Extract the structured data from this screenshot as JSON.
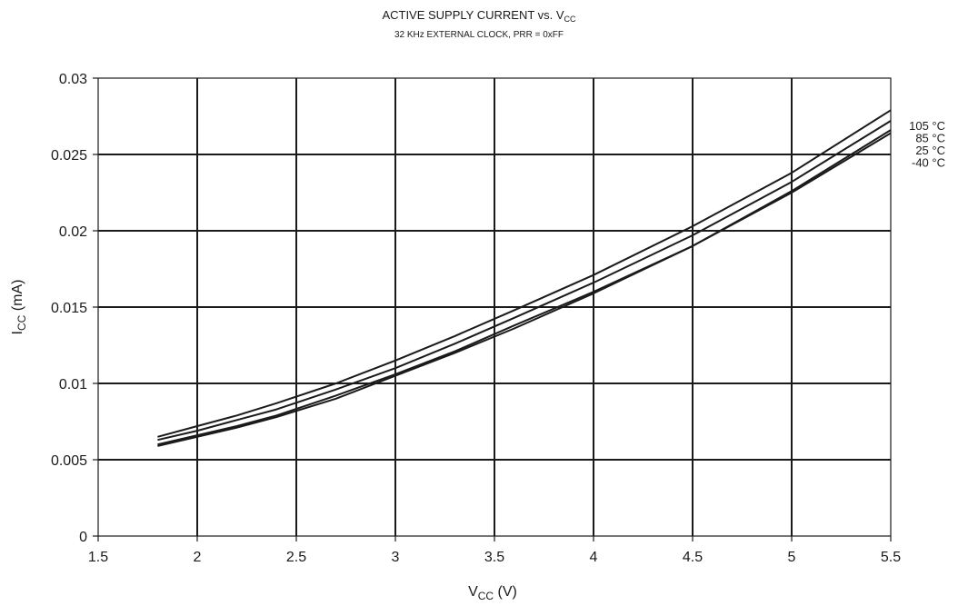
{
  "chart_data": {
    "type": "line",
    "title": {
      "main": "ACTIVE SUPPLY CURRENT vs. V",
      "sub": "CC"
    },
    "subtitle": "32 KHz EXTERNAL CLOCK, PRR = 0xFF",
    "xlabel": {
      "main": "V",
      "sub": "CC",
      "unit": " (V)"
    },
    "ylabel": {
      "main": "I",
      "sub": "CC",
      "unit": " (mA)"
    },
    "xlim": [
      1.5,
      5.5
    ],
    "ylim": [
      0,
      0.03
    ],
    "xticks": [
      "1.5",
      "2",
      "2.5",
      "3",
      "3.5",
      "4",
      "4.5",
      "5",
      "5.5"
    ],
    "yticks": [
      "0",
      "0.005",
      "0.01",
      "0.015",
      "0.02",
      "0.025",
      "0.03"
    ],
    "grid": true,
    "legend_position": "right",
    "x": [
      1.8,
      2.0,
      2.2,
      2.4,
      2.7,
      3.0,
      3.3,
      3.6,
      4.0,
      4.5,
      5.0,
      5.5
    ],
    "series": [
      {
        "name": "105 °C",
        "values": [
          0.0065,
          0.0072,
          0.0079,
          0.0087,
          0.01,
          0.0115,
          0.0131,
          0.0148,
          0.0171,
          0.0203,
          0.0238,
          0.0279
        ]
      },
      {
        "name": "85 °C",
        "values": [
          0.0063,
          0.0069,
          0.0076,
          0.0083,
          0.0096,
          0.011,
          0.0126,
          0.0143,
          0.0166,
          0.0197,
          0.0232,
          0.0272
        ]
      },
      {
        "name": "25 °C",
        "values": [
          0.006,
          0.0066,
          0.0072,
          0.0079,
          0.0092,
          0.0106,
          0.0121,
          0.0138,
          0.016,
          0.019,
          0.0226,
          0.0266
        ]
      },
      {
        "name": "-40 °C",
        "values": [
          0.0059,
          0.0065,
          0.0071,
          0.0078,
          0.009,
          0.0105,
          0.012,
          0.0136,
          0.0159,
          0.019,
          0.0225,
          0.0264
        ]
      }
    ]
  }
}
